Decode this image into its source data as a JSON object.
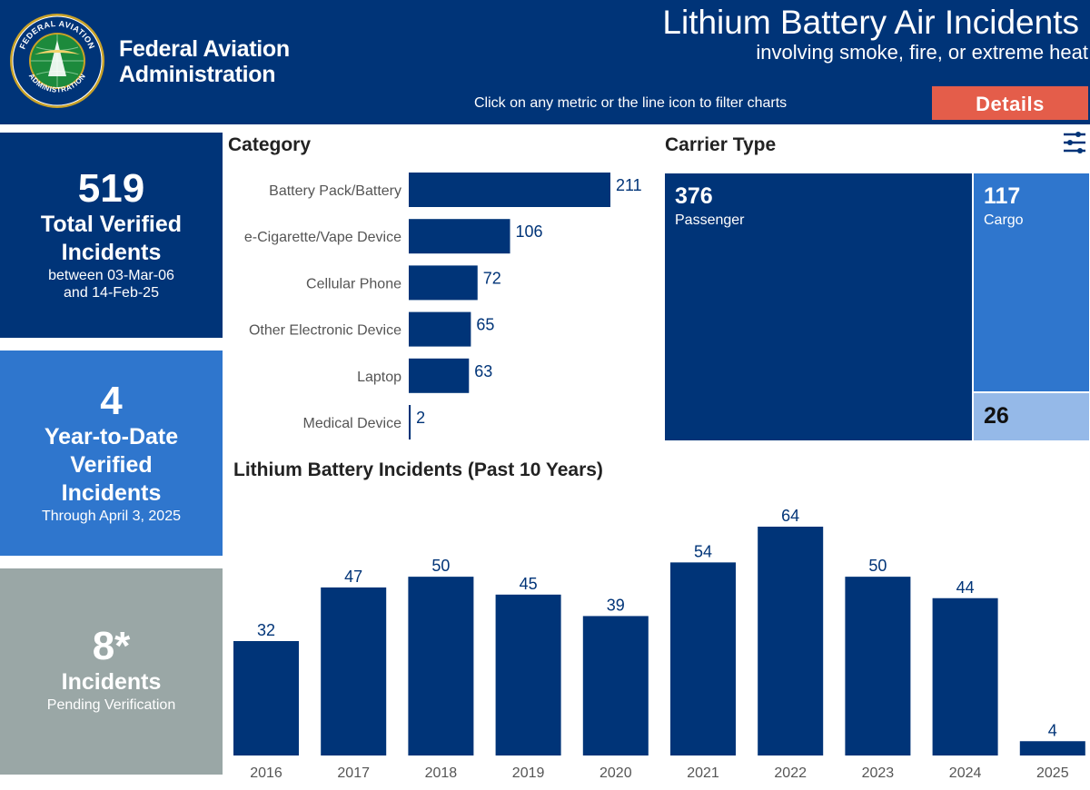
{
  "header": {
    "org_name_line1": "Federal Aviation",
    "org_name_line2": "Administration",
    "seal_text_top": "FEDERAL AVIATION",
    "seal_text_bottom": "ADMINISTRATION",
    "title": "Lithium Battery Air Incidents",
    "subtitle": "involving smoke, fire, or extreme heat",
    "hint": "Click on any metric or the line icon to filter charts",
    "details_label": "Details"
  },
  "kpis": {
    "total": {
      "value": "519",
      "label_line1": "Total Verified",
      "label_line2": "Incidents",
      "sub_line1": "between 03-Mar-06",
      "sub_line2": "and 14-Feb-25"
    },
    "ytd": {
      "value": "4",
      "label_line1": "Year-to-Date",
      "label_line2": "Verified",
      "label_line3": "Incidents",
      "sub": "Through April 3, 2025"
    },
    "pending": {
      "value": "8*",
      "label": "Incidents",
      "sub": "Pending Verification"
    }
  },
  "carrier": {
    "title": "Carrier Type",
    "passenger": {
      "value": "376",
      "name": "Passenger"
    },
    "cargo": {
      "value": "117",
      "name": "Cargo"
    },
    "other": {
      "value": "26"
    }
  },
  "colors": {
    "navy": "#003478",
    "blue": "#2f76cd",
    "light_blue": "#95b9e8",
    "gray": "#9aa7a6",
    "details_red": "#e45d4a"
  },
  "chart_data": [
    {
      "type": "bar",
      "orientation": "horizontal",
      "title": "Category",
      "categories": [
        "Battery Pack/Battery",
        "e-Cigarette/Vape Device",
        "Cellular Phone",
        "Other Electronic Device",
        "Laptop",
        "Medical Device"
      ],
      "values": [
        211,
        106,
        72,
        65,
        63,
        2
      ],
      "xlim": [
        0,
        211
      ],
      "grid": false
    },
    {
      "type": "bar",
      "orientation": "vertical",
      "title": "Lithium Battery Incidents (Past 10 Years)",
      "categories": [
        "2016",
        "2017",
        "2018",
        "2019",
        "2020",
        "2021",
        "2022",
        "2023",
        "2024",
        "2025"
      ],
      "values": [
        32,
        47,
        50,
        45,
        39,
        54,
        64,
        50,
        44,
        4
      ],
      "ylim": [
        0,
        64
      ],
      "grid": false
    }
  ]
}
